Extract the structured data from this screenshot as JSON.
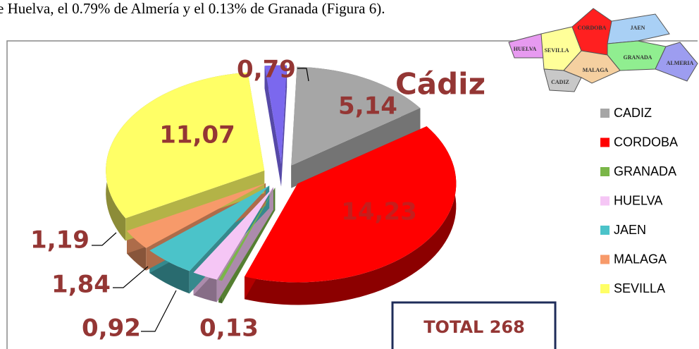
{
  "page_text": "e Huelva, el 0.79% de Almería y el 0.13% de Granada (Figura 6).",
  "chart_data": {
    "type": "pie",
    "categories": [
      null,
      "CADIZ",
      "CORDOBA",
      "GRANADA",
      "HUELVA",
      "JAEN",
      "MALAGA",
      "SEVILLA"
    ],
    "values": [
      0.79,
      5.14,
      14.23,
      0.13,
      0.92,
      1.84,
      1.19,
      11.07
    ],
    "value_labels": [
      "0,79",
      "5,14",
      "14,23",
      "0,13",
      "0,92",
      "1,84",
      "1,19",
      "11,07"
    ],
    "colors": [
      "#7b68ee",
      "#a6a6a6",
      "#ff0000",
      "#7ab648",
      "#f5c6f5",
      "#4bc3c9",
      "#f79a6a",
      "#ffff66"
    ],
    "annotation": "Cádiz",
    "total_label": "TOTAL 268",
    "map_labels": [
      "HUELVA",
      "SEVILLA",
      "CORDOBA",
      "JAEN",
      "GRANADA",
      "ALMERIA",
      "CADIZ",
      "MALAGA"
    ]
  }
}
